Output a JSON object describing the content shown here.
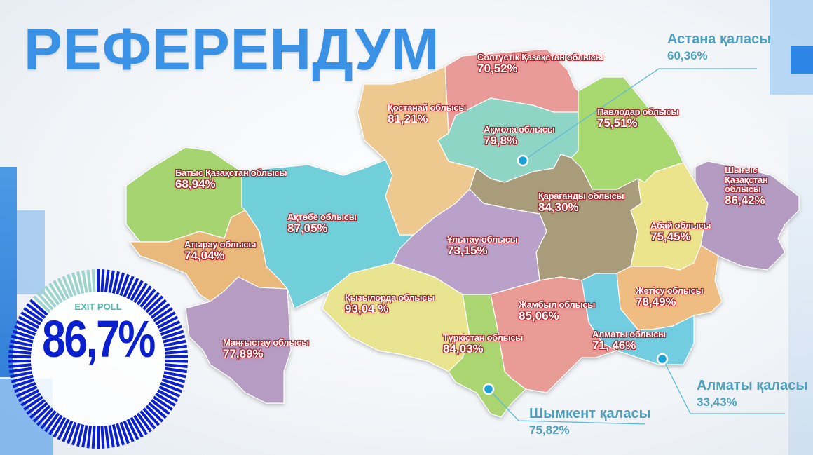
{
  "title": "РЕФЕРЕНДУМ",
  "exit_poll": {
    "label": "EXIT POLL",
    "value": "86,7%",
    "fraction": 0.867,
    "color_filled": "#0a1fd0",
    "color_rest": "#9ed3cf"
  },
  "regions": [
    {
      "id": "batys",
      "name": "Батыс Қазақстан облысы",
      "value": "68,94%",
      "color": "#a6d470"
    },
    {
      "id": "atyrau",
      "name": "Атырау облысы",
      "value": "74,04%",
      "color": "#e9b97c"
    },
    {
      "id": "mangystau",
      "name": "Маңғыстау облысы",
      "value": "77,89%",
      "color": "#b69cc2"
    },
    {
      "id": "aktobe",
      "name": "Ақтөбе облысы",
      "value": "87,05%",
      "color": "#6fcfd8"
    },
    {
      "id": "kostanay",
      "name": "Қостанай облысы",
      "value": "81,21%",
      "color": "#eec98f"
    },
    {
      "id": "soltustik",
      "name": "Солтүстік Қазақстан облысы",
      "value": "70,52%",
      "color": "#e89b98"
    },
    {
      "id": "akmola",
      "name": "Ақмола облысы",
      "value": "79,8%",
      "color": "#8fd5c5"
    },
    {
      "id": "pavlodar",
      "name": "Павлодар облысы",
      "value": "75,51%",
      "color": "#a8d86f"
    },
    {
      "id": "karagandy",
      "name": "Қарағанды облысы",
      "value": "84,30%",
      "color": "#a99c7a"
    },
    {
      "id": "ulytau",
      "name": "Ұлытау облысы",
      "value": "73,15%",
      "color": "#b9a1c9"
    },
    {
      "id": "abay",
      "name": "Абай облысы",
      "value": "75,45%",
      "color": "#ebe48c"
    },
    {
      "id": "shygys",
      "name": "Шығыс Қазақстан облысы",
      "value": "86,42%",
      "color": "#b39bc2"
    },
    {
      "id": "zhetisu",
      "name": "Жетісу облысы",
      "value": "78,49%",
      "color": "#efbc82"
    },
    {
      "id": "almaty_obl",
      "name": "Алматы облысы",
      "value": "71, 46%",
      "color": "#73cde0"
    },
    {
      "id": "zhambyl",
      "name": "Жамбыл облысы",
      "value": "85,06%",
      "color": "#e99b96"
    },
    {
      "id": "turkistan",
      "name": "Түркістан облысы",
      "value": "84,03%",
      "color": "#aad56f"
    },
    {
      "id": "kyzylorda",
      "name": "Қызылорда облысы",
      "value": "93,04 %",
      "color": "#e8e48f"
    }
  ],
  "cities": [
    {
      "id": "astana",
      "name": "Астана қаласы",
      "value": "60,36%"
    },
    {
      "id": "shymkent",
      "name": "Шымкент қаласы",
      "value": "75,82%"
    },
    {
      "id": "almaty",
      "name": "Алматы қаласы",
      "value": "33,43%"
    }
  ],
  "accent_color": "#3a92e6",
  "city_color": "#4f9fbc"
}
